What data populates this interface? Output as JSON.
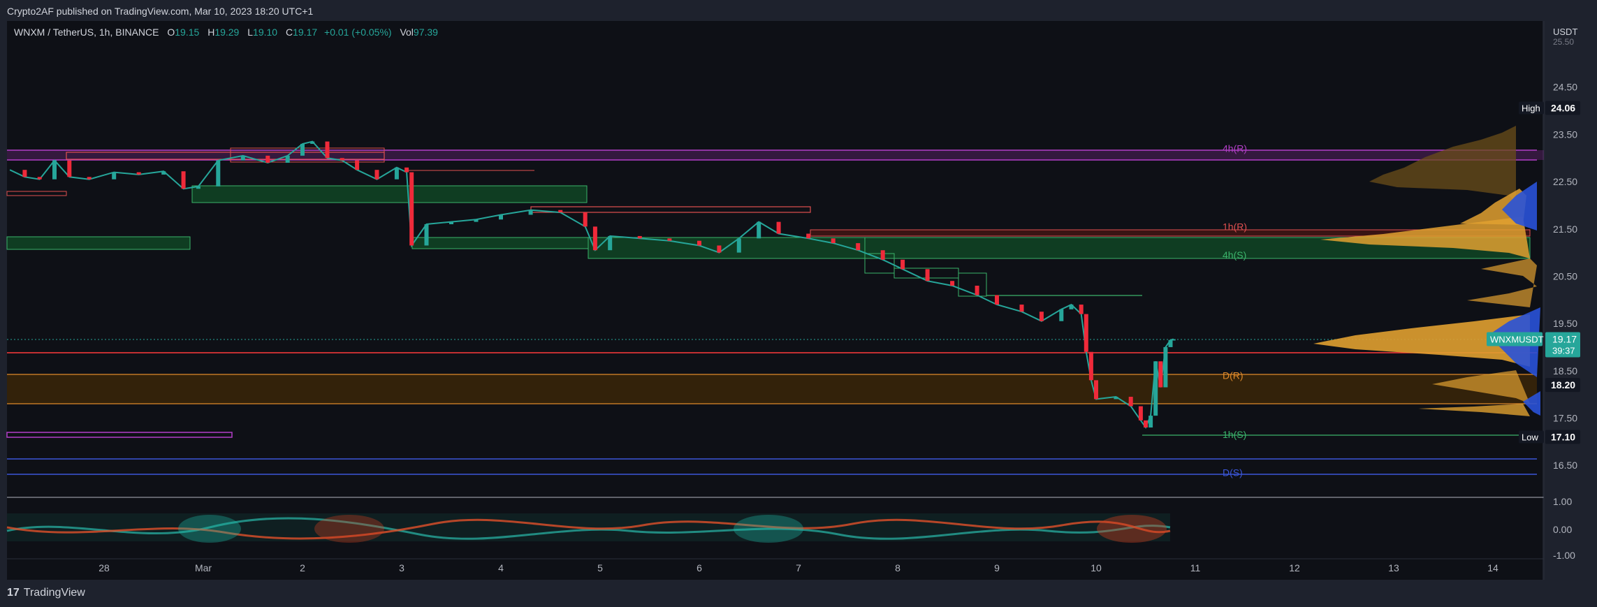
{
  "header": {
    "published": "Crypto2AF published on TradingView.com, Mar 10, 2023 18:20 UTC+1"
  },
  "legend": {
    "symbol": "WNXM / TetherUS, 1h, BINANCE",
    "o_label": "O",
    "o_val": "19.15",
    "h_label": "H",
    "h_val": "19.29",
    "l_label": "L",
    "l_val": "19.10",
    "c_label": "C",
    "c_val": "19.17",
    "change": "+0.01 (+0.05%)",
    "vol_label": "Vol",
    "vol_val": "97.39"
  },
  "footer": {
    "logo": "TradingView"
  },
  "chart_data": {
    "type": "candlestick",
    "currency": "USDT",
    "ylim": [
      16.0,
      25.9
    ],
    "y_ticks": [
      "24.50",
      "23.50",
      "22.50",
      "21.50",
      "20.50",
      "19.50",
      "18.50",
      "17.50",
      "16.50"
    ],
    "y_top_partial": "25.50",
    "x_ticks": [
      {
        "label": "28",
        "day": -2
      },
      {
        "label": "Mar",
        "day": -1
      },
      {
        "label": "2",
        "day": 0
      },
      {
        "label": "3",
        "day": 1
      },
      {
        "label": "4",
        "day": 2
      },
      {
        "label": "5",
        "day": 3
      },
      {
        "label": "6",
        "day": 4
      },
      {
        "label": "7",
        "day": 5
      },
      {
        "label": "8",
        "day": 6
      },
      {
        "label": "9",
        "day": 7
      },
      {
        "label": "10",
        "day": 8
      },
      {
        "label": "11",
        "day": 9
      },
      {
        "label": "12",
        "day": 10
      },
      {
        "label": "13",
        "day": 11
      },
      {
        "label": "14",
        "day": 12
      }
    ],
    "price_markers": [
      {
        "tag": "High",
        "value": "24.06",
        "price": 24.06
      },
      {
        "tag": "",
        "value": "18.20",
        "price": 18.2
      },
      {
        "tag": "Low",
        "value": "17.10",
        "price": 17.1
      }
    ],
    "last_price": {
      "symbol": "WNXMUSDT",
      "value": "19.17",
      "countdown": "39:37",
      "price": 19.17
    },
    "zone_labels": [
      {
        "text": "4h(R)",
        "price": 23.2,
        "color": "#b33fc8"
      },
      {
        "text": "1h(R)",
        "price": 21.55,
        "color": "#e05050"
      },
      {
        "text": "4h(S)",
        "price": 20.95,
        "color": "#3bb36b"
      },
      {
        "text": "D(R)",
        "price": 18.4,
        "color": "#e08a2a"
      },
      {
        "text": "1h(S)",
        "price": 17.15,
        "color": "#3bb36b"
      },
      {
        "text": "D(S)",
        "price": 16.35,
        "color": "#3b56d8"
      }
    ],
    "series": [
      {
        "name": "price",
        "path": [
          [
            -2.95,
            22.75
          ],
          [
            -2.8,
            22.6
          ],
          [
            -2.65,
            22.55
          ],
          [
            -2.5,
            22.95
          ],
          [
            -2.35,
            22.6
          ],
          [
            -2.15,
            22.55
          ],
          [
            -1.9,
            22.7
          ],
          [
            -1.65,
            22.65
          ],
          [
            -1.4,
            22.72
          ],
          [
            -1.2,
            22.35
          ],
          [
            -1.05,
            22.4
          ],
          [
            -0.85,
            22.95
          ],
          [
            -0.6,
            23.05
          ],
          [
            -0.35,
            22.9
          ],
          [
            -0.15,
            23.05
          ],
          [
            0.0,
            23.3
          ],
          [
            0.1,
            23.35
          ],
          [
            0.25,
            23.0
          ],
          [
            0.4,
            22.95
          ],
          [
            0.55,
            22.75
          ],
          [
            0.75,
            22.55
          ],
          [
            0.95,
            22.8
          ],
          [
            1.05,
            22.7
          ],
          [
            1.1,
            21.15
          ],
          [
            1.25,
            21.6
          ],
          [
            1.5,
            21.65
          ],
          [
            1.75,
            21.7
          ],
          [
            2.0,
            21.8
          ],
          [
            2.3,
            21.9
          ],
          [
            2.6,
            21.85
          ],
          [
            2.85,
            21.55
          ],
          [
            2.95,
            21.05
          ],
          [
            3.1,
            21.35
          ],
          [
            3.4,
            21.3
          ],
          [
            3.7,
            21.25
          ],
          [
            4.0,
            21.15
          ],
          [
            4.2,
            21.0
          ],
          [
            4.4,
            21.3
          ],
          [
            4.6,
            21.65
          ],
          [
            4.8,
            21.4
          ],
          [
            5.1,
            21.3
          ],
          [
            5.35,
            21.2
          ],
          [
            5.6,
            21.05
          ],
          [
            5.85,
            20.85
          ],
          [
            6.05,
            20.65
          ],
          [
            6.3,
            20.4
          ],
          [
            6.55,
            20.3
          ],
          [
            6.8,
            20.1
          ],
          [
            7.0,
            19.9
          ],
          [
            7.25,
            19.75
          ],
          [
            7.45,
            19.55
          ],
          [
            7.65,
            19.8
          ],
          [
            7.75,
            19.9
          ],
          [
            7.85,
            19.7
          ],
          [
            7.9,
            18.9
          ],
          [
            7.95,
            18.3
          ],
          [
            8.0,
            17.9
          ],
          [
            8.2,
            17.95
          ],
          [
            8.35,
            17.75
          ],
          [
            8.45,
            17.45
          ],
          [
            8.5,
            17.3
          ],
          [
            8.55,
            17.55
          ],
          [
            8.6,
            18.7
          ],
          [
            8.65,
            18.15
          ],
          [
            8.7,
            19.0
          ],
          [
            8.75,
            19.15
          ],
          [
            8.78,
            19.17
          ]
        ]
      }
    ],
    "oscillator": {
      "y_ticks": [
        "1.00",
        "0.00",
        "-1.00"
      ]
    }
  }
}
